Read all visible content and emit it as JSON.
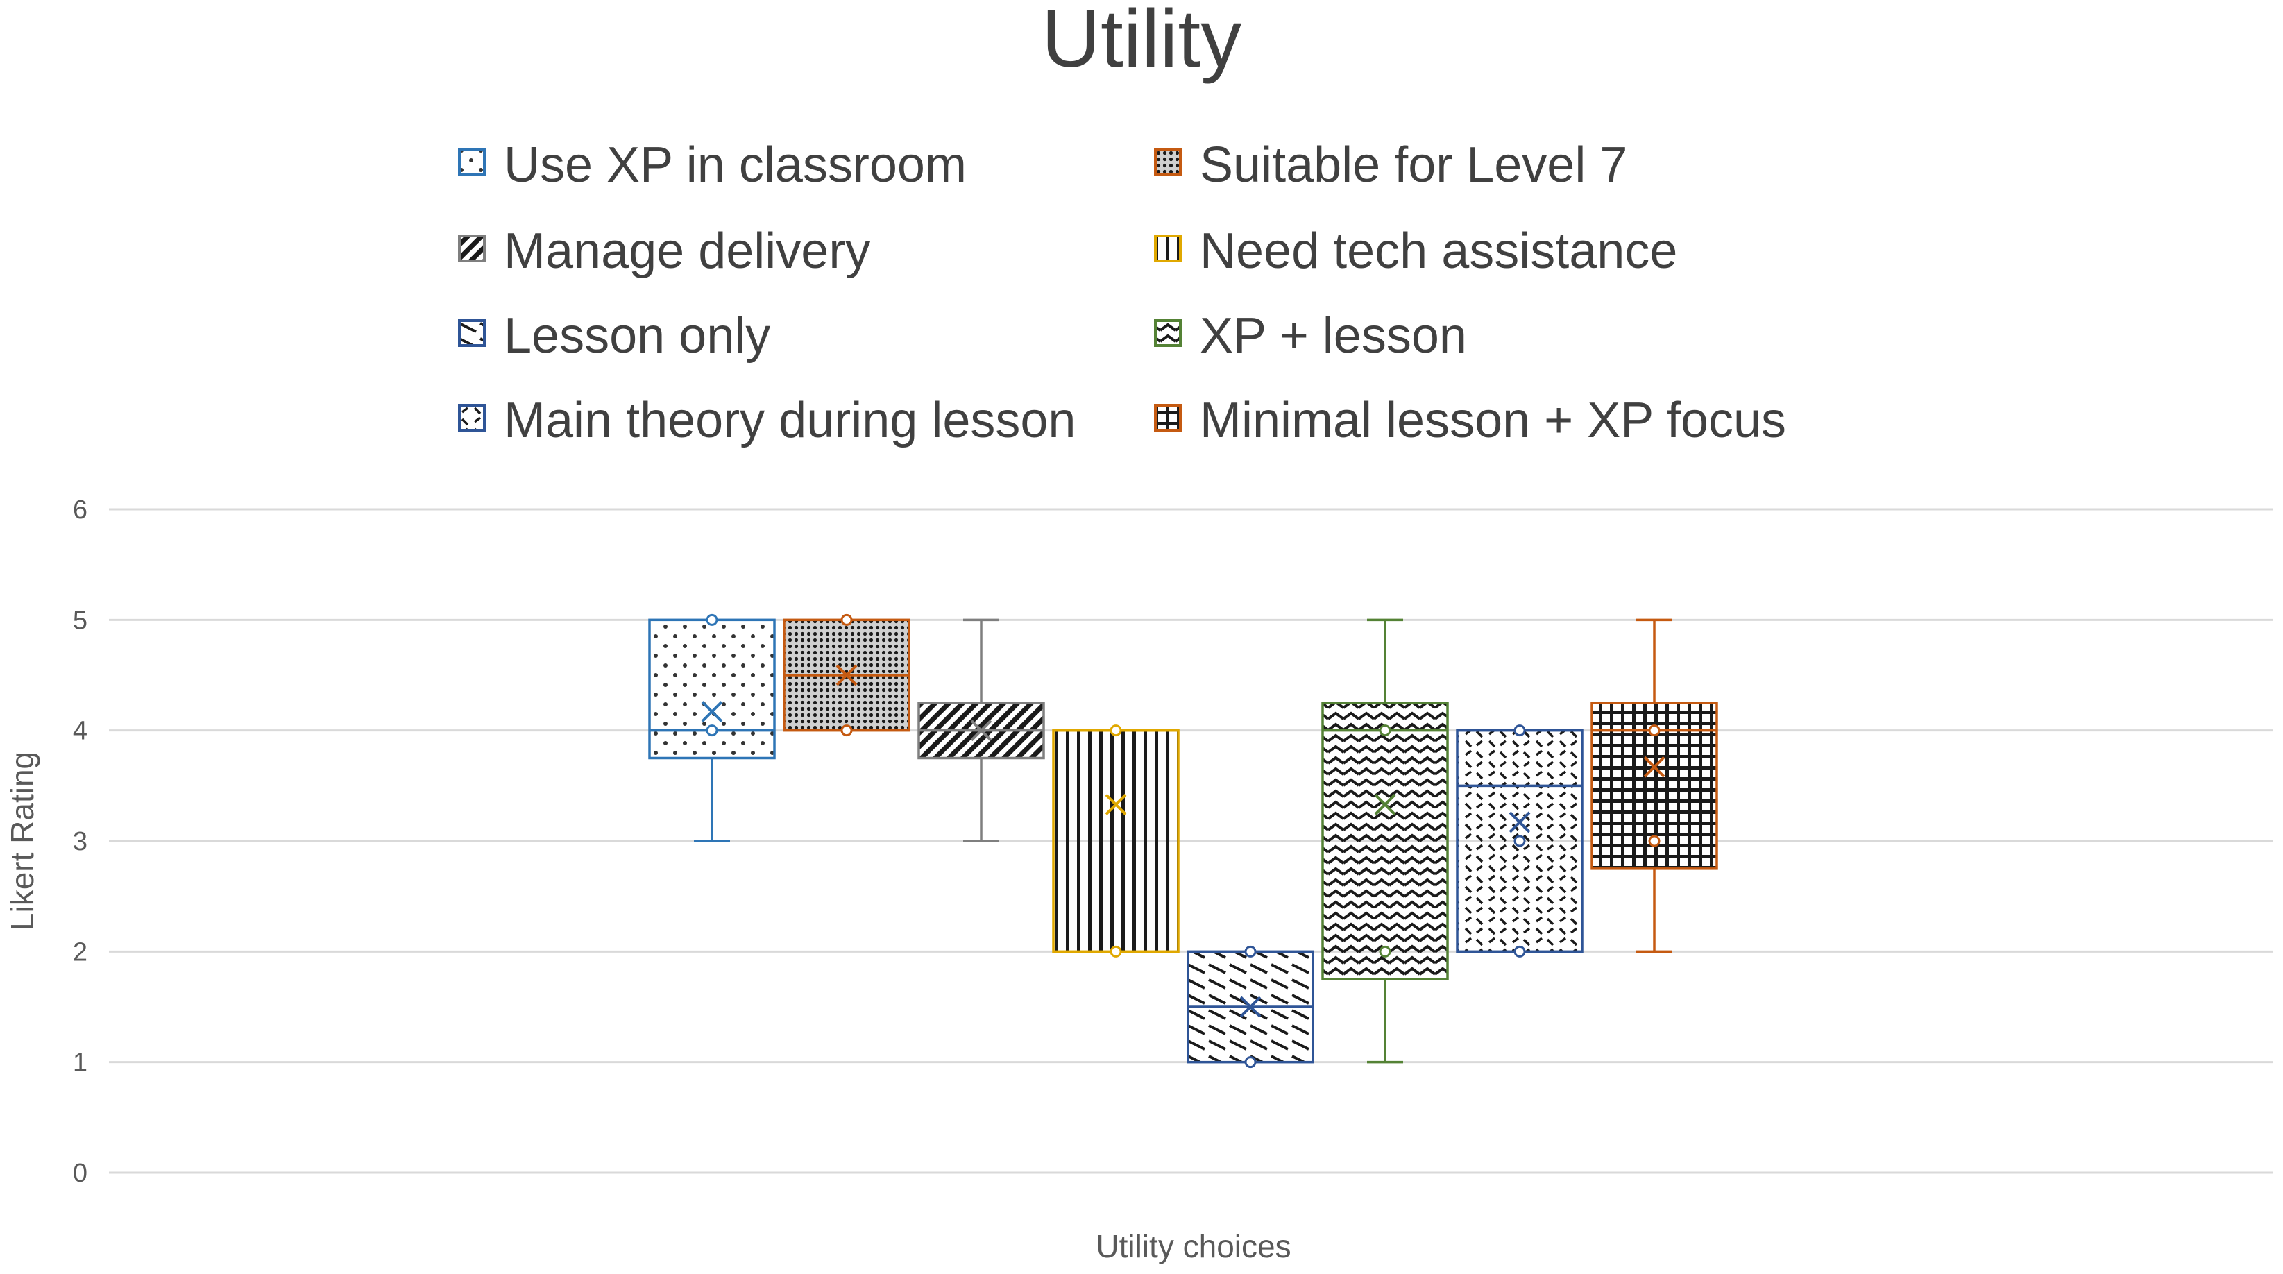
{
  "chart_data": {
    "type": "boxplot",
    "title": "Utility",
    "xlabel": "Utility choices",
    "ylabel": "Likert Rating",
    "ylim": [
      0,
      6
    ],
    "yticks": [
      0,
      1,
      2,
      3,
      4,
      5,
      6
    ],
    "grid": true,
    "legend_position": "top",
    "series": [
      {
        "name": "Use XP in classroom",
        "color": "#2E75B6",
        "pattern": "dots",
        "min": 3,
        "q1": 3.75,
        "median": 4,
        "q3": 5,
        "max": 5,
        "mean": 4.17,
        "points": [
          5,
          4
        ]
      },
      {
        "name": "Suitable for Level 7",
        "color": "#C55A11",
        "pattern": "dense-dots",
        "min": 4,
        "q1": 4,
        "median": 4.5,
        "q3": 5,
        "max": 5,
        "mean": 4.5,
        "points": [
          5,
          4
        ]
      },
      {
        "name": "Manage delivery",
        "color": "#7F7F7F",
        "pattern": "diagonal",
        "min": 3,
        "q1": 3.75,
        "median": 4,
        "q3": 4.25,
        "max": 5,
        "mean": 4,
        "points": []
      },
      {
        "name": "Need tech assistance",
        "color": "#E0A800",
        "pattern": "vertical",
        "min": 2,
        "q1": 2,
        "median": 4,
        "q3": 4,
        "max": 4,
        "mean": 3.33,
        "points": [
          4,
          2
        ]
      },
      {
        "name": "Lesson only",
        "color": "#2F5597",
        "pattern": "diagonal-dash",
        "min": 1,
        "q1": 1,
        "median": 1.5,
        "q3": 2,
        "max": 2,
        "mean": 1.5,
        "points": [
          2,
          1
        ]
      },
      {
        "name": "XP + lesson",
        "color": "#548235",
        "pattern": "zigzag",
        "min": 1,
        "q1": 1.75,
        "median": 4,
        "q3": 4.25,
        "max": 5,
        "mean": 3.33,
        "points": [
          4,
          2
        ]
      },
      {
        "name": "Main theory during lesson",
        "color": "#2F5597",
        "pattern": "dashes",
        "min": 2,
        "q1": 2,
        "median": 3.5,
        "q3": 4,
        "max": 4,
        "mean": 3.17,
        "points": [
          4,
          2,
          3
        ]
      },
      {
        "name": "Minimal lesson + XP focus",
        "color": "#C55A11",
        "pattern": "grid",
        "min": 2,
        "q1": 2.75,
        "median": 4,
        "q3": 4.25,
        "max": 5,
        "mean": 3.67,
        "points": [
          4,
          3
        ]
      }
    ]
  }
}
